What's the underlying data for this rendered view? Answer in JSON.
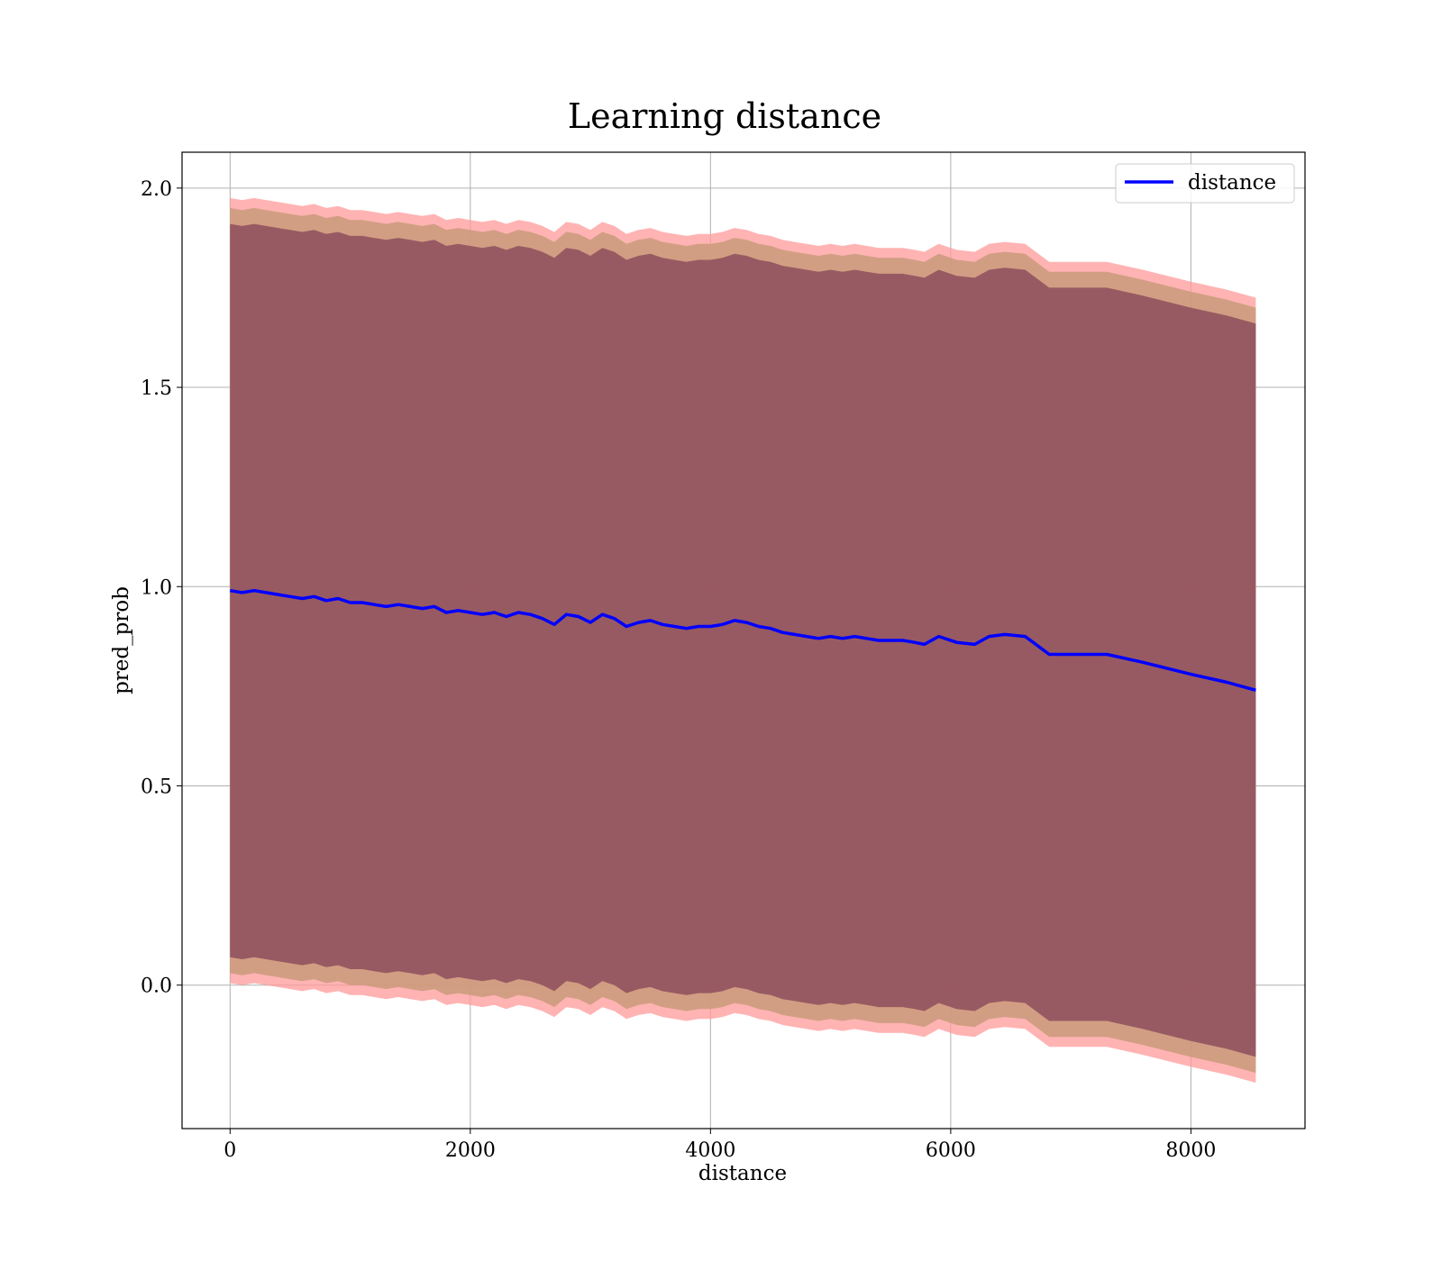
{
  "chart_data": {
    "type": "line",
    "title": "Learning distance",
    "xlabel": "distance",
    "ylabel": "pred_prob",
    "xlim": [
      -400,
      8950
    ],
    "ylim": [
      -0.36,
      2.09
    ],
    "xticks": [
      0,
      2000,
      4000,
      6000,
      8000
    ],
    "xtick_labels": [
      "0",
      "2000",
      "4000",
      "6000",
      "8000"
    ],
    "yticks": [
      0.0,
      0.5,
      1.0,
      1.5,
      2.0
    ],
    "ytick_labels": [
      "0.0",
      "0.5",
      "1.0",
      "1.5",
      "2.0"
    ],
    "grid": true,
    "legend": {
      "placement": "upper-right",
      "entries": [
        "distance"
      ]
    },
    "colors": {
      "line": "#0000ff",
      "outer_band": "#ff9999",
      "inner_band": "#8b4a5a",
      "middle_band": "#c99a7a"
    },
    "series": [
      {
        "name": "distance",
        "x": [
          0,
          100,
          200,
          300,
          400,
          500,
          600,
          700,
          800,
          900,
          1000,
          1100,
          1200,
          1300,
          1400,
          1500,
          1600,
          1700,
          1800,
          1900,
          2000,
          2100,
          2200,
          2300,
          2400,
          2500,
          2600,
          2700,
          2800,
          2900,
          3000,
          3100,
          3200,
          3300,
          3400,
          3500,
          3600,
          3700,
          3800,
          3900,
          4000,
          4100,
          4200,
          4300,
          4400,
          4500,
          4600,
          4700,
          4800,
          4900,
          5000,
          5100,
          5200,
          5300,
          5400,
          5500,
          5600,
          5700,
          5780,
          5900,
          6050,
          6200,
          6320,
          6450,
          6620,
          6820,
          7050,
          7300,
          7600,
          8000,
          8300,
          8540
        ],
        "y": [
          0.99,
          0.985,
          0.99,
          0.985,
          0.98,
          0.975,
          0.97,
          0.975,
          0.965,
          0.97,
          0.96,
          0.96,
          0.955,
          0.95,
          0.955,
          0.95,
          0.945,
          0.95,
          0.935,
          0.94,
          0.935,
          0.93,
          0.935,
          0.925,
          0.935,
          0.93,
          0.92,
          0.905,
          0.93,
          0.925,
          0.91,
          0.93,
          0.92,
          0.9,
          0.91,
          0.915,
          0.905,
          0.9,
          0.895,
          0.9,
          0.9,
          0.905,
          0.915,
          0.91,
          0.9,
          0.895,
          0.885,
          0.88,
          0.875,
          0.87,
          0.875,
          0.87,
          0.875,
          0.87,
          0.865,
          0.865,
          0.865,
          0.86,
          0.855,
          0.875,
          0.86,
          0.855,
          0.875,
          0.88,
          0.875,
          0.83,
          0.83,
          0.83,
          0.81,
          0.78,
          0.76,
          0.74
        ]
      }
    ],
    "bands": [
      {
        "lower_offset": 0.985,
        "upper_offset": 0.985
      },
      {
        "lower_offset": 0.96,
        "upper_offset": 0.96
      },
      {
        "lower_offset": 0.92,
        "upper_offset": 0.92
      }
    ]
  }
}
